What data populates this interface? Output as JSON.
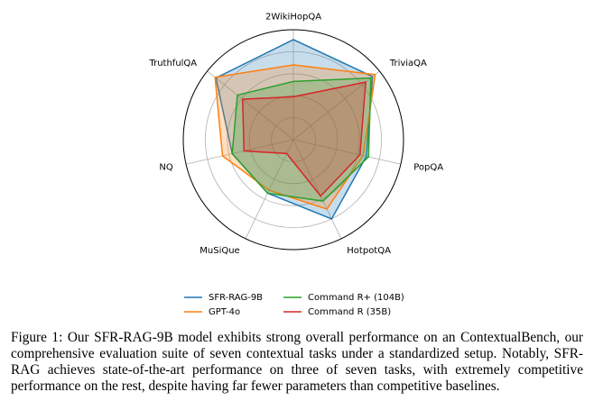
{
  "chart_data": {
    "type": "radar",
    "categories": [
      "2WikiHopQA",
      "TriviaQA",
      "PopQA",
      "HotpotQA",
      "MuSiQue",
      "NQ",
      "TruthfulQA"
    ],
    "series": [
      {
        "name": "SFR-RAG-9B",
        "color": "#1f77b4",
        "values": [
          0.91,
          0.92,
          0.68,
          0.8,
          0.54,
          0.57,
          0.9
        ]
      },
      {
        "name": "GPT-4o",
        "color": "#ff7f0e",
        "values": [
          0.68,
          0.95,
          0.65,
          0.7,
          0.51,
          0.66,
          0.91
        ]
      },
      {
        "name": "Command R+ (104B)",
        "color": "#2ca02c",
        "values": [
          0.53,
          0.9,
          0.7,
          0.62,
          0.54,
          0.57,
          0.65
        ]
      },
      {
        "name": "Command R (35B)",
        "color": "#d62728",
        "values": [
          0.39,
          0.84,
          0.62,
          0.57,
          0.14,
          0.46,
          0.59
        ]
      }
    ],
    "rlim": [
      0,
      1
    ],
    "rticks": [
      0.2,
      0.4,
      0.6,
      0.8
    ],
    "grid": true,
    "legend": "bottom"
  },
  "caption": "Figure 1: Our SFR-RAG-9B model exhibits strong overall performance on an ContextualBench, our comprehensive evaluation suite of seven contextual tasks under a standardized setup. Notably, SFR-RAG achieves state-of-the-art performance on three of seven tasks, with extremely competitive performance on the rest, despite having far fewer parameters than competitive baselines."
}
